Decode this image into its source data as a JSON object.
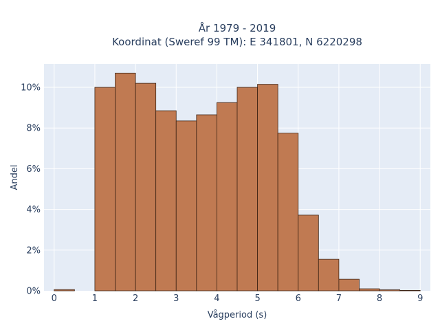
{
  "chart_data": {
    "type": "bar",
    "title_line1": "År 1979 - 2019",
    "title_line2": "Koordinat (Sweref 99 TM): E 341801, N 6220298",
    "xlabel": "Vågperiod (s)",
    "ylabel": "Andel",
    "bin_width": 0.5,
    "xlim": [
      -0.25,
      9.25
    ],
    "ylim": [
      0,
      0.1115
    ],
    "x_ticks": [
      0,
      1,
      2,
      3,
      4,
      5,
      6,
      7,
      8,
      9
    ],
    "x_tick_labels": [
      "0",
      "1",
      "2",
      "3",
      "4",
      "5",
      "6",
      "7",
      "8",
      "9"
    ],
    "y_ticks": [
      0,
      0.02,
      0.04,
      0.06,
      0.08,
      0.1
    ],
    "y_tick_labels": [
      "0%",
      "2%",
      "4%",
      "6%",
      "8%",
      "10%"
    ],
    "bins": [
      {
        "x0": 0.0,
        "x1": 0.5,
        "value": 0.0006
      },
      {
        "x0": 1.0,
        "x1": 1.5,
        "value": 0.1
      },
      {
        "x0": 1.5,
        "x1": 2.0,
        "value": 0.107
      },
      {
        "x0": 2.0,
        "x1": 2.5,
        "value": 0.102
      },
      {
        "x0": 2.5,
        "x1": 3.0,
        "value": 0.0885
      },
      {
        "x0": 3.0,
        "x1": 3.5,
        "value": 0.0835
      },
      {
        "x0": 3.5,
        "x1": 4.0,
        "value": 0.0865
      },
      {
        "x0": 4.0,
        "x1": 4.5,
        "value": 0.0925
      },
      {
        "x0": 4.5,
        "x1": 5.0,
        "value": 0.1
      },
      {
        "x0": 5.0,
        "x1": 5.5,
        "value": 0.1015
      },
      {
        "x0": 5.5,
        "x1": 6.0,
        "value": 0.0775
      },
      {
        "x0": 6.0,
        "x1": 6.5,
        "value": 0.0372
      },
      {
        "x0": 6.5,
        "x1": 7.0,
        "value": 0.0155
      },
      {
        "x0": 7.0,
        "x1": 7.5,
        "value": 0.0057
      },
      {
        "x0": 7.5,
        "x1": 8.0,
        "value": 0.001
      },
      {
        "x0": 8.0,
        "x1": 8.5,
        "value": 0.0005
      },
      {
        "x0": 8.5,
        "x1": 9.0,
        "value": 0.0002
      }
    ],
    "grid": true,
    "colors": {
      "bar_fill": "#c07a52",
      "bar_stroke": "#3d2314",
      "plot_bg": "#e5ecf6",
      "grid": "#ffffff"
    }
  }
}
